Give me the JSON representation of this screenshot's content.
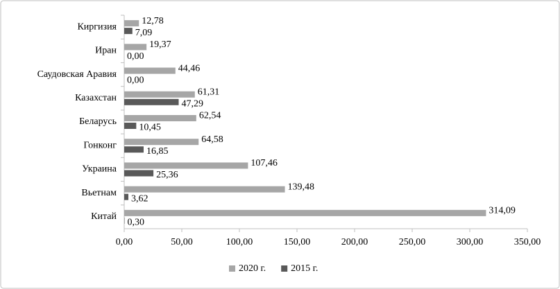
{
  "chart_data": {
    "type": "bar",
    "orientation": "horizontal",
    "categories": [
      "Киргизия",
      "Иран",
      "Саудовская Аравия",
      "Казахстан",
      "Беларусь",
      "Гонконг",
      "Украина",
      "Вьетнам",
      "Китай"
    ],
    "series": [
      {
        "name": "2020 г.",
        "color": "#a6a6a6",
        "values": [
          12.78,
          19.37,
          44.46,
          61.31,
          62.54,
          64.58,
          107.46,
          139.48,
          314.09
        ],
        "value_labels": [
          "12,78",
          "19,37",
          "44,46",
          "61,31",
          "62,54",
          "64,58",
          "107,46",
          "139,48",
          "314,09"
        ]
      },
      {
        "name": "2015 г.",
        "color": "#595959",
        "values": [
          7.09,
          0.0,
          0.0,
          47.29,
          10.45,
          16.85,
          25.36,
          3.62,
          0.3
        ],
        "value_labels": [
          "7,09",
          "0,00",
          "0,00",
          "47,29",
          "10,45",
          "16,85",
          "25,36",
          "3,62",
          "0,30"
        ]
      }
    ],
    "xlim": [
      0,
      350
    ],
    "xticks": [
      {
        "value": 0,
        "label": "0,00"
      },
      {
        "value": 50,
        "label": "50,00"
      },
      {
        "value": 100,
        "label": "100,00"
      },
      {
        "value": 150,
        "label": "150,00"
      },
      {
        "value": 200,
        "label": "200,00"
      },
      {
        "value": 250,
        "label": "250,00"
      },
      {
        "value": 300,
        "label": "300,00"
      },
      {
        "value": 350,
        "label": "350,00"
      }
    ],
    "grid": false,
    "legend": "bottom"
  }
}
